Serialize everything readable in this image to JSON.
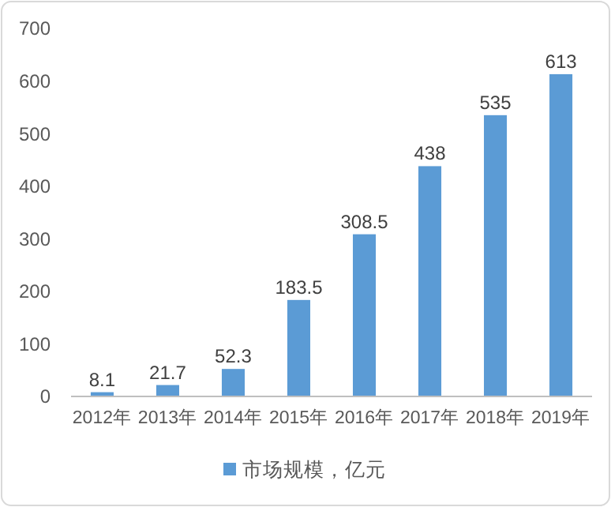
{
  "chart_data": {
    "type": "bar",
    "categories": [
      "2012年",
      "2013年",
      "2014年",
      "2015年",
      "2016年",
      "2017年",
      "2018年",
      "2019年"
    ],
    "series": [
      {
        "name": "市场规模，亿元",
        "color": "#5b9bd5",
        "values": [
          8.1,
          21.7,
          52.3,
          183.5,
          308.5,
          438,
          535,
          613
        ]
      }
    ],
    "ylim": [
      0,
      700
    ],
    "yticks": [
      0,
      100,
      200,
      300,
      400,
      500,
      600,
      700
    ],
    "data_labels": true,
    "grid": false,
    "legend": "bottom"
  }
}
